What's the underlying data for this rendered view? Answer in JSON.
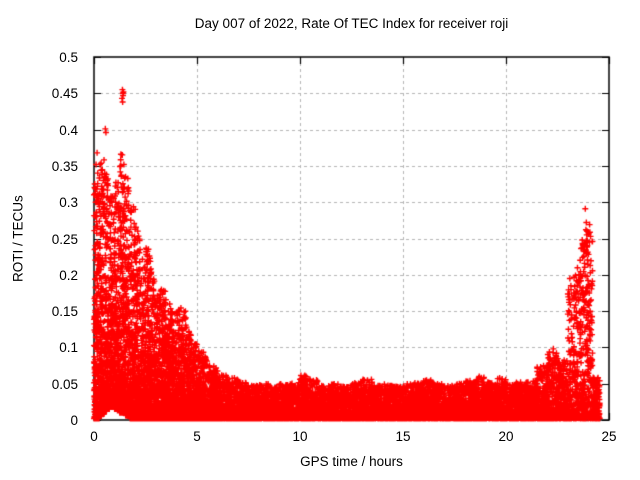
{
  "figure": {
    "title": "Day 007 of 2022, Rate Of TEC Index for receiver roji",
    "xlabel": "GPS time / hours",
    "ylabel": "ROTI / TECUs",
    "background": "#ffffff"
  },
  "chart_data": {
    "type": "scatter",
    "title": "Day 007 of 2022, Rate Of TEC Index for receiver roji",
    "xlabel": "GPS time / hours",
    "ylabel": "ROTI / TECUs",
    "marker": "plus",
    "marker_size_px": 7,
    "style": {
      "marker_color": "#ff0000",
      "grid_color": "#b5b5b5",
      "axis_color": "#000000",
      "text_color": "#000000",
      "grid_style": "dashed",
      "legend": "none"
    },
    "axes": {
      "x": {
        "label": "GPS time / hours",
        "min": 0,
        "max": 25,
        "ticks": [
          0,
          5,
          10,
          15,
          20,
          25
        ],
        "tick_labels": [
          "0",
          "5",
          "10",
          "15",
          "20",
          "25"
        ]
      },
      "y": {
        "label": "ROTI / TECUs",
        "min": 0,
        "max": 0.5,
        "ticks": [
          0,
          0.05,
          0.1,
          0.15,
          0.2,
          0.25,
          0.3,
          0.35,
          0.4,
          0.45,
          0.5
        ],
        "tick_labels": [
          "0",
          "0.05",
          "0.1",
          "0.15",
          "0.2",
          "0.25",
          "0.3",
          "0.35",
          "0.4",
          "0.45",
          "0.5"
        ]
      }
    },
    "x_data_range": [
      0,
      24.55
    ],
    "summary": "Dense ROTI scatter: high activity 0-5 h decaying from ~0.35 TECU peaks (max cluster ~0.45 at ~1.4 h), quiet baseline 0-0.05 from 6-21 h, renewed spike 23-24.2 h reaching ~0.29.",
    "v_floor": 0.002,
    "density_bins": [
      [
        0.0,
        0.25,
        0.33,
        260,
        2.6
      ],
      [
        0.25,
        0.5,
        0.36,
        260,
        2.7,
        0.008
      ],
      [
        0.5,
        0.75,
        0.34,
        260,
        2.6,
        0.015
      ],
      [
        0.75,
        1.0,
        0.31,
        260,
        2.6,
        0.018
      ],
      [
        1.0,
        1.25,
        0.33,
        260,
        2.5,
        0.015
      ],
      [
        1.25,
        1.5,
        0.37,
        270,
        2.5,
        0.01
      ],
      [
        1.5,
        1.75,
        0.34,
        250,
        2.5,
        0.006
      ],
      [
        1.75,
        2.0,
        0.3,
        250,
        2.6
      ],
      [
        2.0,
        2.25,
        0.27,
        240,
        2.6
      ],
      [
        2.25,
        2.5,
        0.23,
        240,
        2.6
      ],
      [
        2.5,
        2.75,
        0.24,
        230,
        2.6
      ],
      [
        2.75,
        3.0,
        0.21,
        230,
        2.7
      ],
      [
        3.0,
        3.25,
        0.18,
        220,
        2.7
      ],
      [
        3.25,
        3.5,
        0.18,
        220,
        2.7
      ],
      [
        3.5,
        3.75,
        0.16,
        210,
        2.7
      ],
      [
        3.75,
        4.0,
        0.15,
        210,
        2.7
      ],
      [
        4.0,
        4.25,
        0.155,
        200,
        2.7
      ],
      [
        4.25,
        4.5,
        0.15,
        200,
        2.7
      ],
      [
        4.5,
        4.75,
        0.125,
        190,
        2.7
      ],
      [
        4.75,
        5.0,
        0.105,
        190,
        2.7
      ],
      [
        5.0,
        5.5,
        0.095,
        300,
        2.6
      ],
      [
        5.5,
        6.0,
        0.075,
        280,
        2.4
      ],
      [
        6.0,
        6.5,
        0.062,
        260,
        2.3
      ],
      [
        6.5,
        7.0,
        0.058,
        250,
        2.2
      ],
      [
        7.0,
        7.5,
        0.052,
        210,
        2.1
      ],
      [
        7.5,
        8.0,
        0.048,
        210,
        2.1
      ],
      [
        8.0,
        8.5,
        0.05,
        210,
        2.1
      ],
      [
        8.5,
        9.0,
        0.046,
        210,
        2.1
      ],
      [
        9.0,
        9.5,
        0.05,
        210,
        2.1
      ],
      [
        9.5,
        10.0,
        0.052,
        210,
        2.1
      ],
      [
        10.0,
        10.5,
        0.062,
        210,
        2.1
      ],
      [
        10.5,
        11.0,
        0.055,
        210,
        2.1
      ],
      [
        11.0,
        11.5,
        0.048,
        210,
        2.1
      ],
      [
        11.5,
        12.0,
        0.05,
        210,
        2.1
      ],
      [
        12.0,
        12.5,
        0.047,
        210,
        2.1
      ],
      [
        12.5,
        13.0,
        0.052,
        210,
        2.1
      ],
      [
        13.0,
        13.5,
        0.056,
        210,
        2.1
      ],
      [
        13.5,
        14.0,
        0.048,
        210,
        2.1
      ],
      [
        14.0,
        14.5,
        0.05,
        210,
        2.1
      ],
      [
        14.5,
        15.0,
        0.047,
        210,
        2.1
      ],
      [
        15.0,
        15.5,
        0.05,
        210,
        2.1
      ],
      [
        15.5,
        16.0,
        0.052,
        210,
        2.1
      ],
      [
        16.0,
        16.5,
        0.055,
        210,
        2.1
      ],
      [
        16.5,
        17.0,
        0.05,
        210,
        2.1
      ],
      [
        17.0,
        17.5,
        0.048,
        210,
        2.1
      ],
      [
        17.5,
        18.0,
        0.05,
        210,
        2.1
      ],
      [
        18.0,
        18.5,
        0.055,
        210,
        2.1
      ],
      [
        18.5,
        19.0,
        0.06,
        210,
        2.1
      ],
      [
        19.0,
        19.5,
        0.052,
        210,
        2.1
      ],
      [
        19.5,
        20.0,
        0.058,
        210,
        2.1
      ],
      [
        20.0,
        20.5,
        0.05,
        210,
        2.1
      ],
      [
        20.5,
        21.0,
        0.052,
        210,
        2.1
      ],
      [
        21.0,
        21.5,
        0.055,
        210,
        2.1
      ],
      [
        21.5,
        22.0,
        0.075,
        210,
        2.2
      ],
      [
        22.0,
        22.5,
        0.095,
        210,
        2.3
      ],
      [
        22.5,
        23.0,
        0.085,
        210,
        2.3
      ],
      [
        23.0,
        23.3,
        0.18,
        130,
        2.4
      ],
      [
        23.3,
        23.6,
        0.21,
        140,
        2.3
      ],
      [
        23.6,
        23.9,
        0.25,
        150,
        2.2
      ],
      [
        23.9,
        24.2,
        0.27,
        150,
        2.1
      ],
      [
        24.2,
        24.55,
        0.06,
        170,
        2.0
      ]
    ],
    "outlier_points": [
      [
        0.05,
        0.32
      ],
      [
        0.08,
        0.3
      ],
      [
        0.1,
        0.352
      ],
      [
        0.15,
        0.368
      ],
      [
        0.18,
        0.34
      ],
      [
        0.55,
        0.401
      ],
      [
        0.58,
        0.396
      ],
      [
        1.3,
        0.35
      ],
      [
        1.36,
        0.443
      ],
      [
        1.38,
        0.455
      ],
      [
        1.4,
        0.45
      ],
      [
        1.41,
        0.447
      ],
      [
        1.43,
        0.452
      ],
      [
        1.39,
        0.438
      ],
      [
        1.45,
        0.352
      ],
      [
        2.55,
        0.235
      ],
      [
        2.6,
        0.22
      ],
      [
        10.3,
        0.06
      ],
      [
        13.1,
        0.055
      ],
      [
        18.7,
        0.06
      ],
      [
        22.3,
        0.098
      ],
      [
        22.45,
        0.092
      ],
      [
        23.1,
        0.195
      ],
      [
        23.15,
        0.185
      ],
      [
        23.3,
        0.175
      ],
      [
        23.5,
        0.19
      ],
      [
        23.6,
        0.22
      ],
      [
        23.7,
        0.248
      ],
      [
        23.8,
        0.232
      ],
      [
        23.85,
        0.291
      ],
      [
        23.88,
        0.262
      ],
      [
        23.9,
        0.272
      ],
      [
        23.92,
        0.255
      ],
      [
        23.95,
        0.24
      ],
      [
        24.0,
        0.258
      ],
      [
        24.05,
        0.245
      ]
    ]
  }
}
